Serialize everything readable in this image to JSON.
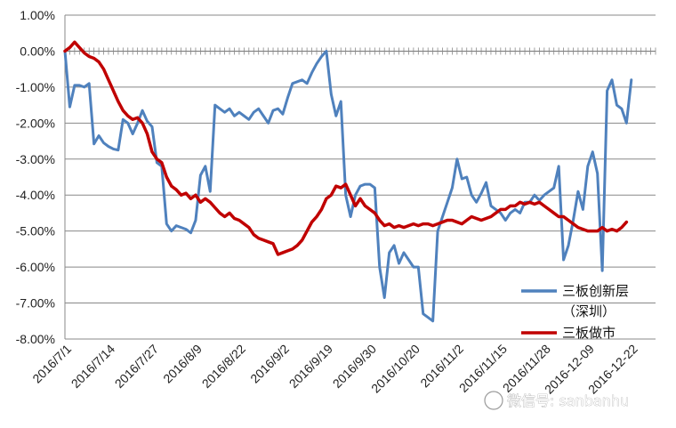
{
  "chart_data": {
    "type": "line",
    "title": "",
    "xlabel": "",
    "ylabel": "",
    "ylim": [
      -0.08,
      0.01
    ],
    "y_ticks": [
      "1.00%",
      "0.00%",
      "-1.00%",
      "-2.00%",
      "-3.00%",
      "-4.00%",
      "-5.00%",
      "-6.00%",
      "-7.00%",
      "-8.00%"
    ],
    "y_tick_values": [
      0.01,
      0,
      -0.01,
      -0.02,
      -0.03,
      -0.04,
      -0.05,
      -0.06,
      -0.07,
      -0.08
    ],
    "x_tick_labels": [
      "2016/7/1",
      "2016/7/14",
      "2016/7/27",
      "2016/8/9",
      "2016/8/22",
      "2016/9/2",
      "2016/9/19",
      "2016/9/30",
      "2016/10/20",
      "2016/11/2",
      "2016/11/15",
      "2016/11/28",
      "2016-12-09",
      "2016-12-22"
    ],
    "x_tick_index": [
      0,
      9,
      18,
      27,
      36,
      45,
      54,
      63,
      72,
      81,
      90,
      99,
      108,
      117
    ],
    "n_points": 123,
    "legend_position": "bottom-right",
    "grid": true,
    "series": [
      {
        "name": "三板创新层",
        "name_line2": "（深圳）",
        "color": "#4f81bd",
        "values": [
          0.0,
          -0.0155,
          -0.0095,
          -0.0095,
          -0.01,
          -0.009,
          -0.0258,
          -0.0235,
          -0.0255,
          -0.0265,
          -0.0272,
          -0.0275,
          -0.019,
          -0.02,
          -0.023,
          -0.02,
          -0.0165,
          -0.0195,
          -0.021,
          -0.031,
          -0.032,
          -0.048,
          -0.05,
          -0.0485,
          -0.049,
          -0.0495,
          -0.0505,
          -0.047,
          -0.0345,
          -0.032,
          -0.039,
          -0.015,
          -0.016,
          -0.017,
          -0.016,
          -0.018,
          -0.017,
          -0.018,
          -0.019,
          -0.017,
          -0.016,
          -0.018,
          -0.02,
          -0.0165,
          -0.016,
          -0.0175,
          -0.013,
          -0.009,
          -0.0085,
          -0.008,
          -0.009,
          -0.006,
          -0.0035,
          -0.0015,
          0.0,
          -0.012,
          -0.018,
          -0.014,
          -0.04,
          -0.046,
          -0.04,
          -0.0375,
          -0.037,
          -0.037,
          -0.038,
          -0.06,
          -0.0685,
          -0.056,
          -0.054,
          -0.059,
          -0.056,
          -0.058,
          -0.06,
          -0.06,
          -0.073,
          -0.074,
          -0.075,
          -0.05,
          -0.046,
          -0.042,
          -0.038,
          -0.03,
          -0.0355,
          -0.035,
          -0.04,
          -0.042,
          -0.0395,
          -0.0365,
          -0.043,
          -0.044,
          -0.045,
          -0.047,
          -0.045,
          -0.044,
          -0.045,
          -0.042,
          -0.042,
          -0.04,
          -0.0415,
          -0.04,
          -0.039,
          -0.038,
          -0.032,
          -0.058,
          -0.054,
          -0.047,
          -0.039,
          -0.044,
          -0.032,
          -0.028,
          -0.034,
          -0.061,
          -0.011,
          -0.008,
          -0.015,
          -0.016,
          -0.02,
          -0.008
        ]
      },
      {
        "name": "三板做市",
        "color": "#c00000",
        "values": [
          0.0,
          0.001,
          0.0025,
          0.001,
          -0.0005,
          -0.0015,
          -0.002,
          -0.003,
          -0.005,
          -0.008,
          -0.011,
          -0.014,
          -0.0165,
          -0.018,
          -0.019,
          -0.0185,
          -0.02,
          -0.023,
          -0.028,
          -0.03,
          -0.031,
          -0.035,
          -0.0375,
          -0.0385,
          -0.04,
          -0.0395,
          -0.041,
          -0.04,
          -0.042,
          -0.041,
          -0.042,
          -0.0435,
          -0.045,
          -0.046,
          -0.045,
          -0.0465,
          -0.047,
          -0.048,
          -0.049,
          -0.051,
          -0.052,
          -0.0525,
          -0.053,
          -0.0535,
          -0.0565,
          -0.056,
          -0.0555,
          -0.055,
          -0.054,
          -0.0525,
          -0.05,
          -0.0475,
          -0.046,
          -0.044,
          -0.041,
          -0.04,
          -0.0375,
          -0.038,
          -0.037,
          -0.04,
          -0.043,
          -0.041,
          -0.043,
          -0.044,
          -0.045,
          -0.047,
          -0.0485,
          -0.048,
          -0.049,
          -0.0485,
          -0.049,
          -0.0485,
          -0.048,
          -0.0485,
          -0.048,
          -0.048,
          -0.0485,
          -0.048,
          -0.0475,
          -0.047,
          -0.047,
          -0.0475,
          -0.048,
          -0.047,
          -0.046,
          -0.0465,
          -0.047,
          -0.0465,
          -0.046,
          -0.045,
          -0.044,
          -0.044,
          -0.043,
          -0.043,
          -0.042,
          -0.0425,
          -0.042,
          -0.0425,
          -0.042,
          -0.043,
          -0.044,
          -0.045,
          -0.046,
          -0.046,
          -0.047,
          -0.048,
          -0.049,
          -0.0495,
          -0.05,
          -0.05,
          -0.05,
          -0.049,
          -0.05,
          -0.0495,
          -0.05,
          -0.049,
          -0.0475
        ]
      }
    ]
  },
  "watermark": {
    "text": "微信号: sanbanhu"
  }
}
